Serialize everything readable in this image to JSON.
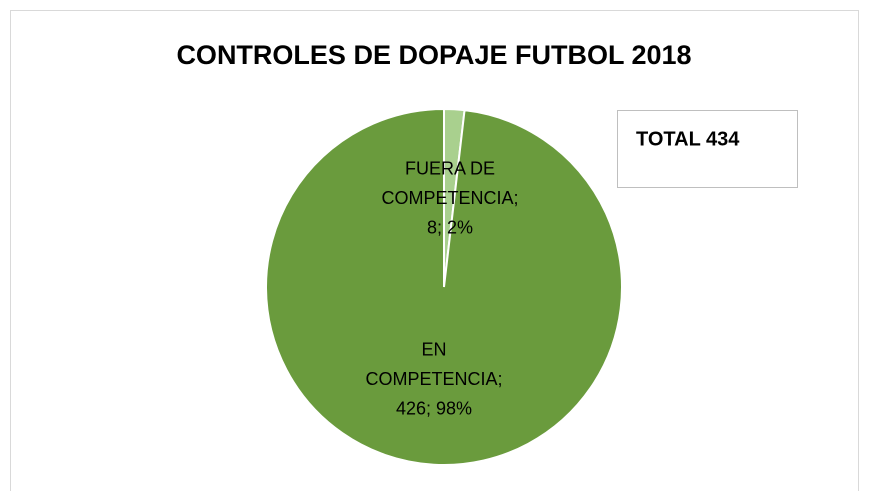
{
  "chart_data": {
    "type": "pie",
    "title": "CONTROLES DE DOPAJE FUTBOL 2018",
    "annotation": "TOTAL 434",
    "categories": [
      "FUERA DE COMPETENCIA",
      "EN COMPETENCIA"
    ],
    "values": [
      8,
      426
    ],
    "value_labels": [
      [
        "FUERA DE",
        "COMPETENCIA;",
        "8; 2%"
      ],
      [
        "EN",
        "COMPETENCIA;",
        "426; 98%"
      ]
    ],
    "colors": [
      "#a9d08e",
      "#6a9b3d"
    ]
  }
}
